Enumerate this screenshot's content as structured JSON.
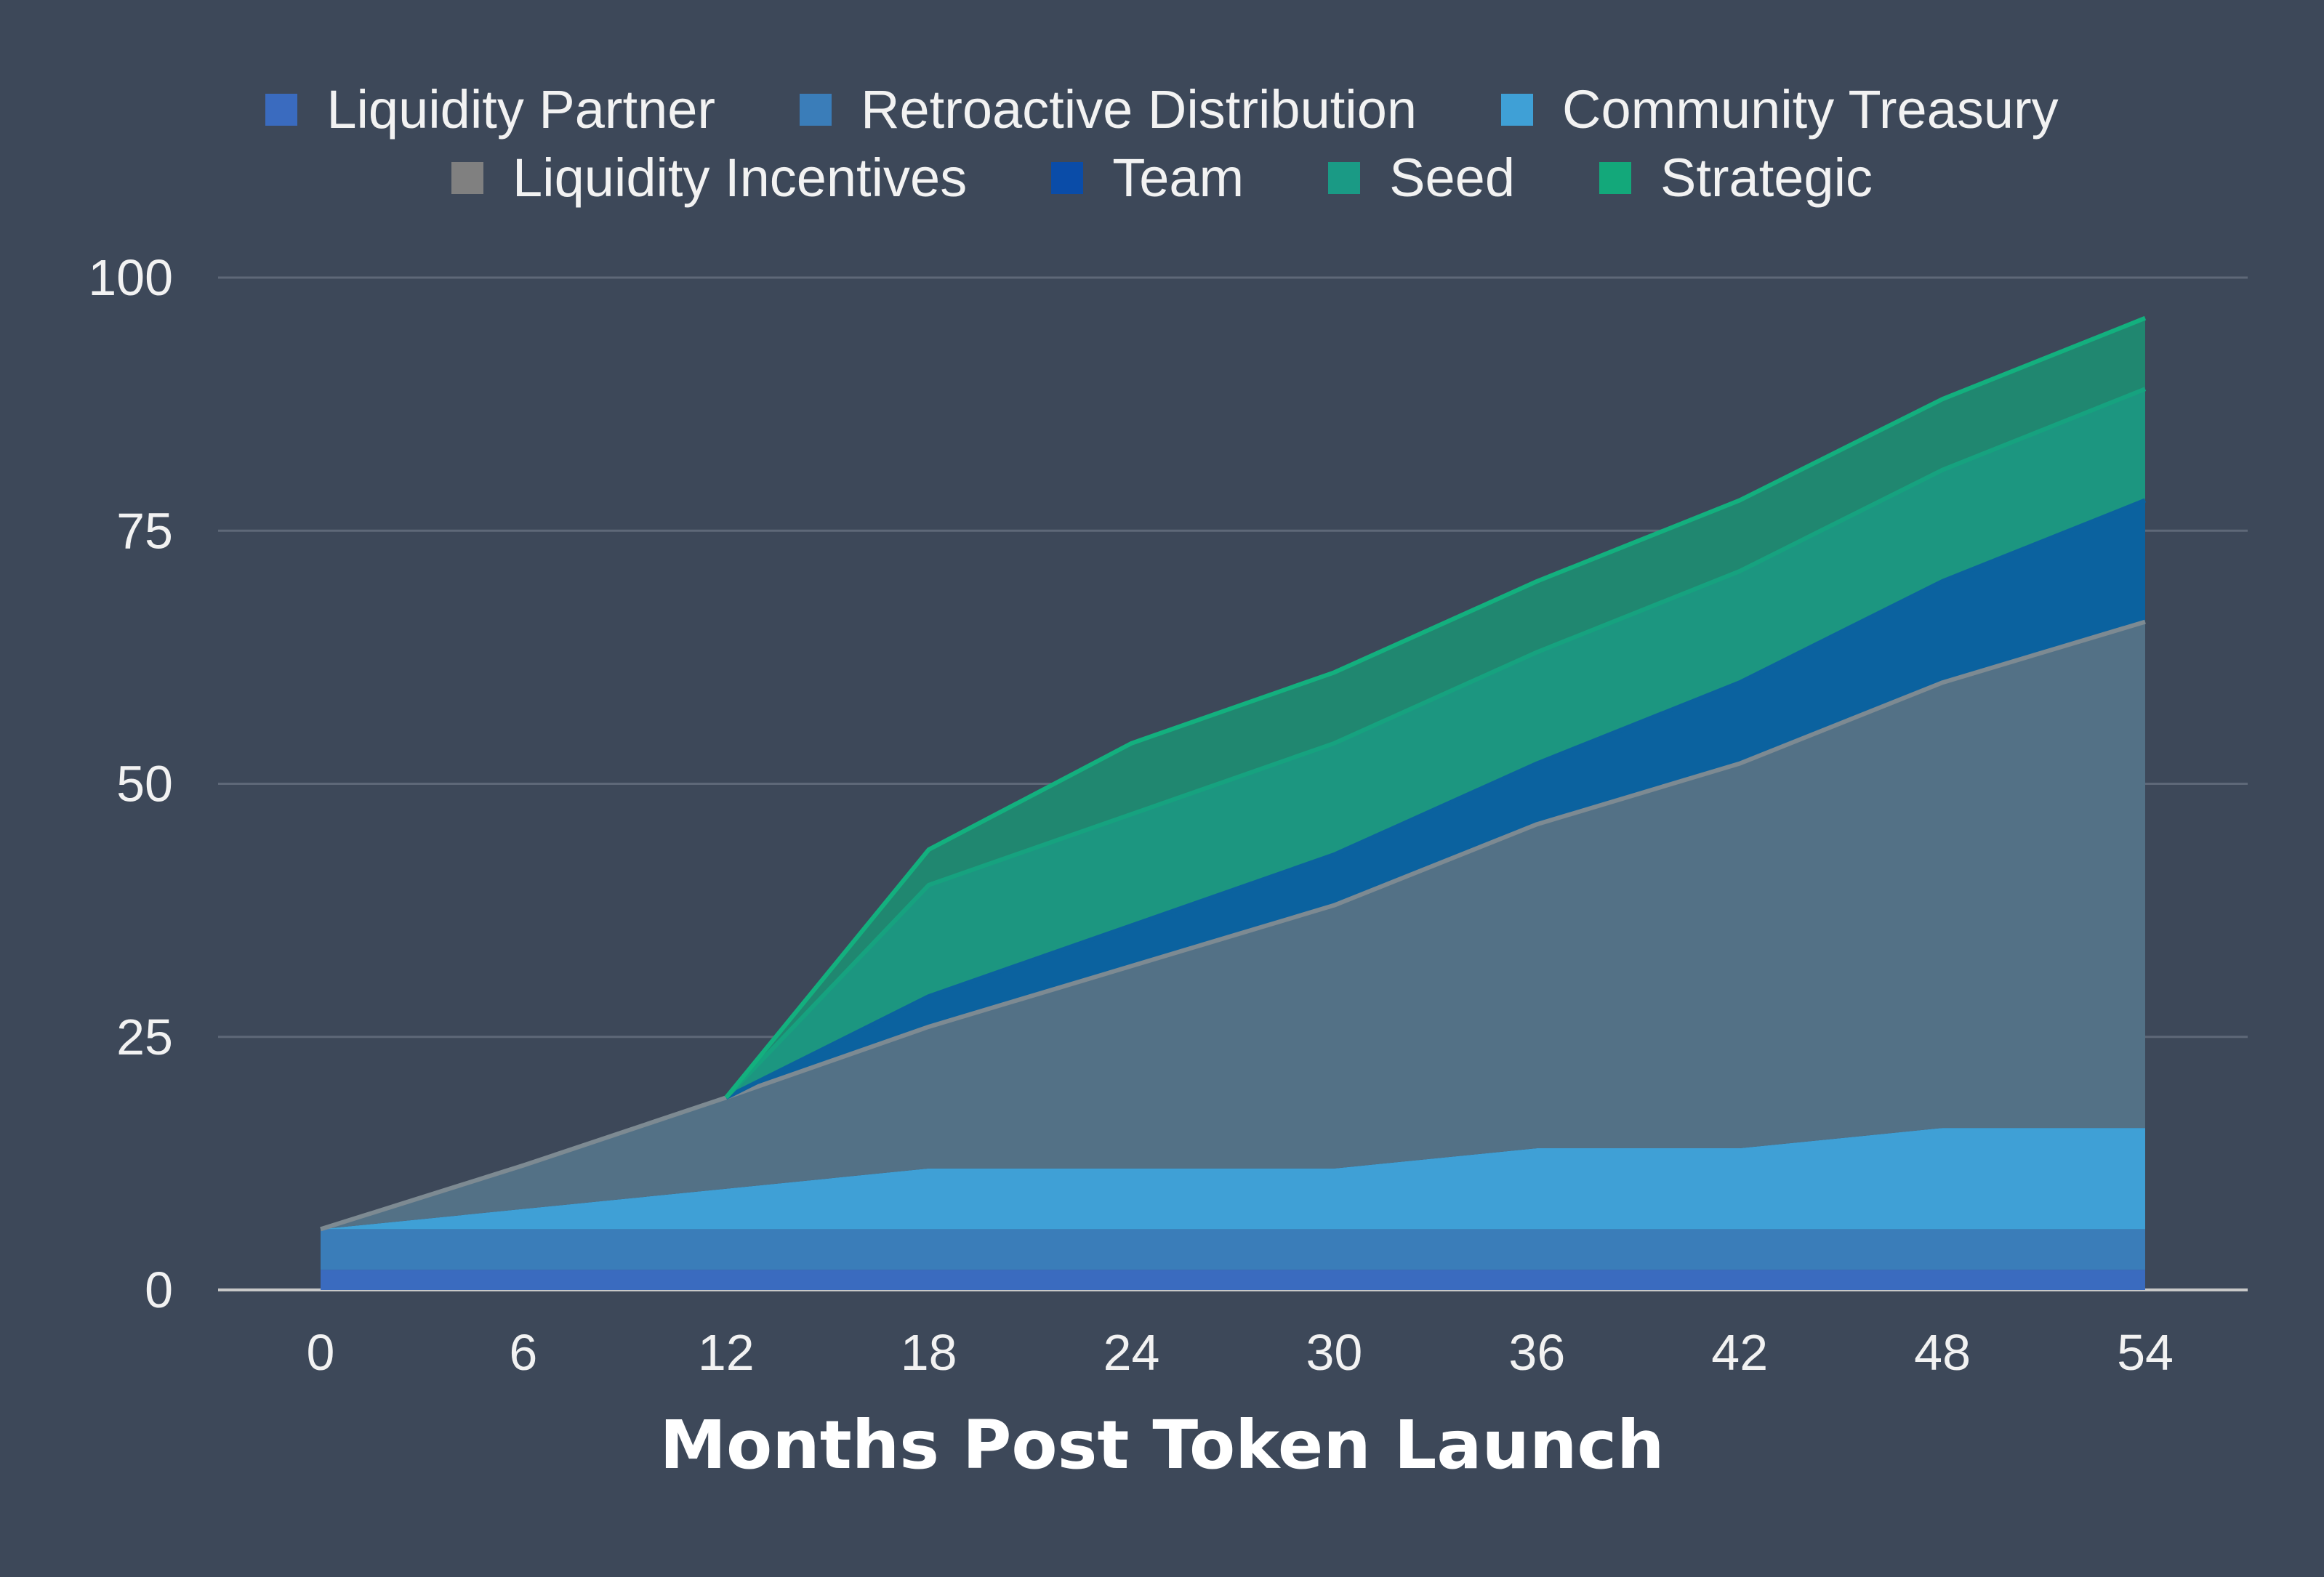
{
  "chart_data": {
    "type": "area",
    "stacked": true,
    "title": "",
    "xlabel": "Months Post Token Launch",
    "ylabel": "",
    "x": [
      0,
      6,
      12,
      18,
      24,
      30,
      36,
      42,
      48,
      54
    ],
    "xticks": [
      "0",
      "6",
      "12",
      "18",
      "24",
      "30",
      "36",
      "42",
      "48",
      "54"
    ],
    "yticks": [
      "0",
      "25",
      "50",
      "75",
      "100"
    ],
    "ylim": [
      0,
      100
    ],
    "xlim": [
      0,
      54
    ],
    "grid": true,
    "legend_position": "top",
    "series": [
      {
        "name": "Liquidity Partner",
        "color": "#3a6bbf",
        "values": [
          2,
          2,
          2,
          2,
          2,
          2,
          2,
          2,
          2,
          2
        ]
      },
      {
        "name": "Retroactive Distribution",
        "color": "#3a7db9",
        "values": [
          4,
          4,
          4,
          4,
          4,
          4,
          4,
          4,
          4,
          4
        ]
      },
      {
        "name": "Community Treasury",
        "color": "#3fa0d6",
        "values": [
          0,
          2,
          4,
          6,
          6,
          6,
          8,
          8,
          10,
          10
        ]
      },
      {
        "name": "Liquidity Incentives",
        "color": "#537186",
        "legend_color": "#808080",
        "values": [
          0,
          4.3,
          9,
          14,
          20,
          26,
          32,
          38,
          44,
          50
        ]
      },
      {
        "name": "Team",
        "color": "#0b629f",
        "legend_color": "#0a4ca8",
        "values": [
          0,
          0,
          0,
          3,
          4,
          5,
          6,
          8,
          10,
          12
        ]
      },
      {
        "name": "Seed",
        "color": "#1c9680",
        "legend_color": "#1a9a85",
        "values": [
          0,
          0,
          0,
          11,
          11,
          11,
          11,
          11,
          11,
          11
        ]
      },
      {
        "name": "Strategic",
        "color": "#208770",
        "legend_color": "#13a87a",
        "line_color": "#13b07e",
        "values": [
          0,
          0,
          0,
          3.5,
          7,
          7,
          7,
          7,
          7,
          7
        ]
      }
    ]
  },
  "legend": {
    "row1": [
      "Liquidity Partner",
      "Retroactive Distribution",
      "Community Treasury"
    ],
    "row2": [
      "Liquidity Incentives",
      "Team",
      "Seed",
      "Strategic"
    ]
  },
  "axis": {
    "x_title": "Months Post Token Launch"
  },
  "colors": {
    "background": "#3d4859",
    "gridline": "#5e6878",
    "axis_line": "#c8c8c8",
    "text": "#f2f2f2"
  }
}
